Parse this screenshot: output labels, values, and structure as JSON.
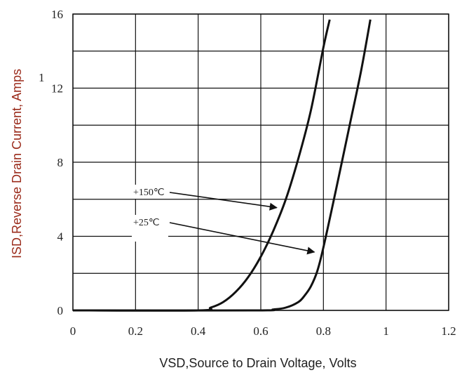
{
  "chart_data": {
    "type": "line",
    "title": "",
    "xlabel": "VSD,Source to Drain Voltage, Volts",
    "ylabel": "ISD,Reverse Drain Current, Amps",
    "xlim": [
      0,
      1.2
    ],
    "ylim": [
      0,
      16
    ],
    "x_ticks": [
      0,
      0.2,
      0.4,
      0.6,
      0.8,
      1,
      1.2
    ],
    "x_tick_labels": [
      "0",
      "0.2",
      "0.4",
      "0.6",
      "0.8",
      "1",
      "1.2"
    ],
    "y_ticks": [
      0,
      4,
      8,
      12,
      16
    ],
    "y_tick_labels": [
      "0",
      "4",
      "8",
      "12",
      "16"
    ],
    "grid": true,
    "stray_label": "1",
    "series": [
      {
        "name": "+150℃",
        "x": [
          0,
          0.4,
          0.44,
          0.48,
          0.52,
          0.56,
          0.6,
          0.64,
          0.68,
          0.72,
          0.76,
          0.8,
          0.82
        ],
        "y": [
          0,
          0,
          0.15,
          0.45,
          1.0,
          1.8,
          2.9,
          4.3,
          6.0,
          8.2,
          10.8,
          14.2,
          15.7
        ]
      },
      {
        "name": "+25℃",
        "x": [
          0,
          0.58,
          0.64,
          0.68,
          0.72,
          0.74,
          0.76,
          0.78,
          0.8,
          0.84,
          0.88,
          0.92,
          0.95
        ],
        "y": [
          0,
          0,
          0.05,
          0.15,
          0.45,
          0.8,
          1.3,
          2.1,
          3.4,
          6.5,
          9.7,
          12.9,
          15.7
        ]
      }
    ],
    "annotations": [
      {
        "text": "+150℃",
        "target_series": "+150℃",
        "target_x": 0.66,
        "target_y": 5.7
      },
      {
        "text": "+25℃",
        "target_series": "+25℃",
        "target_x": 0.78,
        "target_y": 3.3
      }
    ]
  }
}
